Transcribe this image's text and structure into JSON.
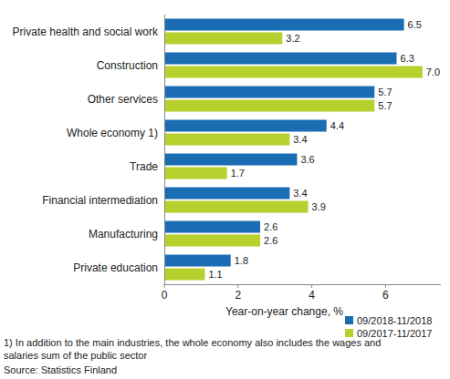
{
  "chart_data": {
    "type": "bar",
    "orientation": "horizontal",
    "categories": [
      "Private health and social work",
      "Construction",
      "Other services",
      "Whole economy 1)",
      "Trade",
      "Financial intermediation",
      "Manufacturing",
      "Private education"
    ],
    "series": [
      {
        "name": "09/2018-11/2018",
        "color": "#1a6db3",
        "values": [
          6.5,
          6.3,
          5.7,
          4.4,
          3.6,
          3.4,
          2.6,
          1.8
        ]
      },
      {
        "name": "09/2017-11/2017",
        "color": "#b8d02e",
        "values": [
          3.2,
          7.0,
          5.7,
          3.4,
          1.7,
          3.9,
          2.6,
          1.1
        ],
        "value_labels": [
          "3.2",
          "7.0",
          "5.7",
          "3.4",
          "1.7",
          "3.9",
          "2.6",
          "1.1"
        ]
      }
    ],
    "xlim": [
      0,
      7.5
    ],
    "xticks": [
      0,
      2,
      4,
      6
    ],
    "x_label": "Year-on-year change, %",
    "data_labels": true,
    "grid": false,
    "legend": "lower right",
    "footnote": [
      "1) In addition to the main industries, the whole economy also includes the wages and",
      "salaries sum of the public sector"
    ],
    "source": "Source: Statistics Finland"
  }
}
